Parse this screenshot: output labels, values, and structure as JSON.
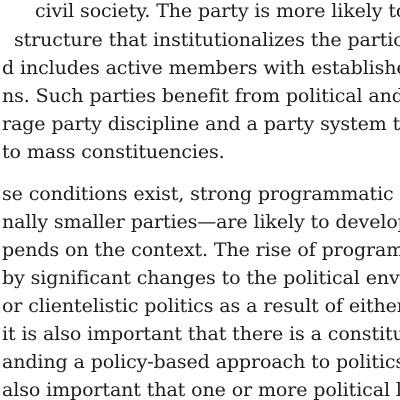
{
  "document": {
    "paragraph_1": {
      "lines": [
        "civil society. The party is more likely to s",
        "structure that institutionalizes the participa",
        "d includes active members with established",
        "ns. Such parties benefit from political and",
        "rage party discipline and a party system th",
        "to mass constituencies."
      ]
    },
    "paragraph_2": {
      "lines": [
        "se conditions exist, strong programmatic par",
        "nally smaller parties—are likely to develop,",
        "pends on the context. The rise of programm",
        "by significant changes to the political environ",
        "or clientelistic politics as a result of either a p",
        "it is also important that there is a constituen",
        "anding a policy-based approach to politics. If",
        "also important that one or more political le"
      ]
    }
  }
}
